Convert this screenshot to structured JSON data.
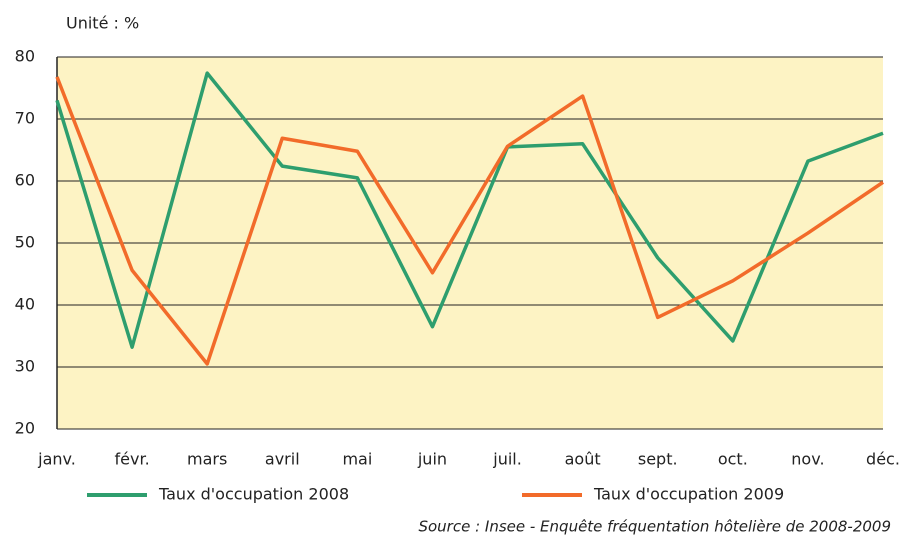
{
  "chart_data": {
    "type": "line",
    "subtitle": "Unité : %",
    "source": "Source : Insee - Enquête fréquentation hôtelière de 2008-2009",
    "categories": [
      "janv.",
      "févr.",
      "mars",
      "avril",
      "mai",
      "juin",
      "juil.",
      "août",
      "sept.",
      "oct.",
      "nov.",
      "déc."
    ],
    "series": [
      {
        "name": "Taux d'occupation 2008",
        "color": "#2e9e6e",
        "values": [
          73,
          33.2,
          77.4,
          62.4,
          60.5,
          36.5,
          65.5,
          66,
          47.6,
          34.2,
          63.2,
          67.7
        ]
      },
      {
        "name": "Taux d'occupation 2009",
        "color": "#f26b2a",
        "values": [
          76.8,
          45.6,
          30.5,
          66.9,
          64.8,
          45.2,
          65.6,
          73.7,
          38,
          43.9,
          51.6,
          59.8
        ]
      }
    ],
    "ylim": [
      20,
      80
    ],
    "yticks": [
      20,
      30,
      40,
      50,
      60,
      70,
      80
    ],
    "grid": true,
    "plot_background": "#fdf3c4"
  }
}
